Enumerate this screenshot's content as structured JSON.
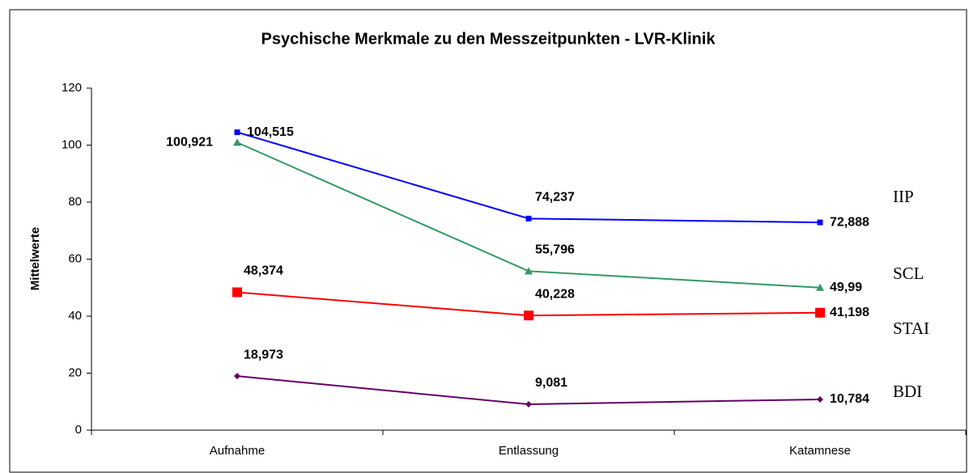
{
  "chart_data": {
    "type": "line",
    "title": "Psychische Merkmale zu den Messzeitpunkten - LVR-Klinik",
    "y_label": "Mittelwerte",
    "categories": [
      "Aufnahme",
      "Entlassung",
      "Katamnese"
    ],
    "series": [
      {
        "name": "IIP",
        "color": "#0000ff",
        "marker": "square",
        "values": [
          104.515,
          74.237,
          72.888
        ],
        "value_labels": [
          "104,515",
          "74,237",
          "72,888"
        ]
      },
      {
        "name": "SCL",
        "color": "#339966",
        "marker": "triangle",
        "values": [
          100.921,
          55.796,
          49.99
        ],
        "value_labels": [
          "100,921",
          "55,796",
          "49,99"
        ]
      },
      {
        "name": "STAI",
        "color": "#ff0000",
        "marker": "big-square",
        "values": [
          48.374,
          40.228,
          41.198
        ],
        "value_labels": [
          "48,374",
          "40,228",
          "41,198"
        ]
      },
      {
        "name": "BDI",
        "color": "#660066",
        "marker": "diamond",
        "values": [
          18.973,
          9.081,
          10.784
        ],
        "value_labels": [
          "18,973",
          "9,081",
          "10,784"
        ]
      }
    ],
    "ylim": [
      0,
      120
    ],
    "yticks": [
      0,
      20,
      40,
      60,
      80,
      100,
      120
    ],
    "grid": false
  }
}
